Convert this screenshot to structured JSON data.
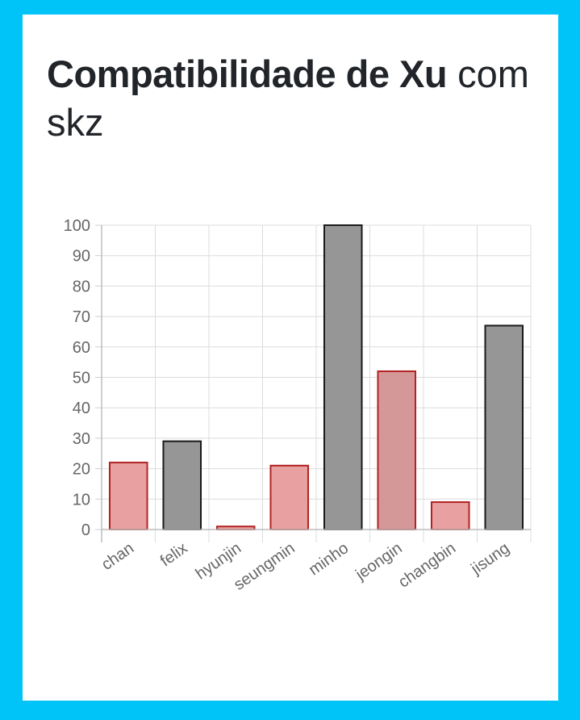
{
  "heading": {
    "bold": "Compatibilidade de Xu",
    "rest": " com skz"
  },
  "chart_data": {
    "type": "bar",
    "title": "Compatibilidade de Xu com skz",
    "categories": [
      "chan",
      "felix",
      "hyunjin",
      "seungmin",
      "minho",
      "jeongin",
      "changbin",
      "jisung"
    ],
    "values": [
      22,
      29,
      1,
      21,
      100,
      52,
      9,
      67
    ],
    "yticks": [
      "0",
      "10",
      "20",
      "30",
      "40",
      "50",
      "60",
      "70",
      "80",
      "90",
      "100"
    ],
    "ylim": [
      0,
      100
    ],
    "grid": true,
    "legend": "none",
    "bar_colors": {
      "chan": {
        "fill": "#e8a0a0",
        "stroke": "#b22222"
      },
      "felix": {
        "fill": "#969696",
        "stroke": "#1a1a1a"
      },
      "hyunjin": {
        "fill": "#e8a0a0",
        "stroke": "#b22222"
      },
      "seungmin": {
        "fill": "#e8a0a0",
        "stroke": "#b22222"
      },
      "minho": {
        "fill": "#969696",
        "stroke": "#1a1a1a"
      },
      "jeongin": {
        "fill": "#d49898",
        "stroke": "#b22222"
      },
      "changbin": {
        "fill": "#e8a0a0",
        "stroke": "#b22222"
      },
      "jisung": {
        "fill": "#969696",
        "stroke": "#1a1a1a"
      }
    }
  }
}
